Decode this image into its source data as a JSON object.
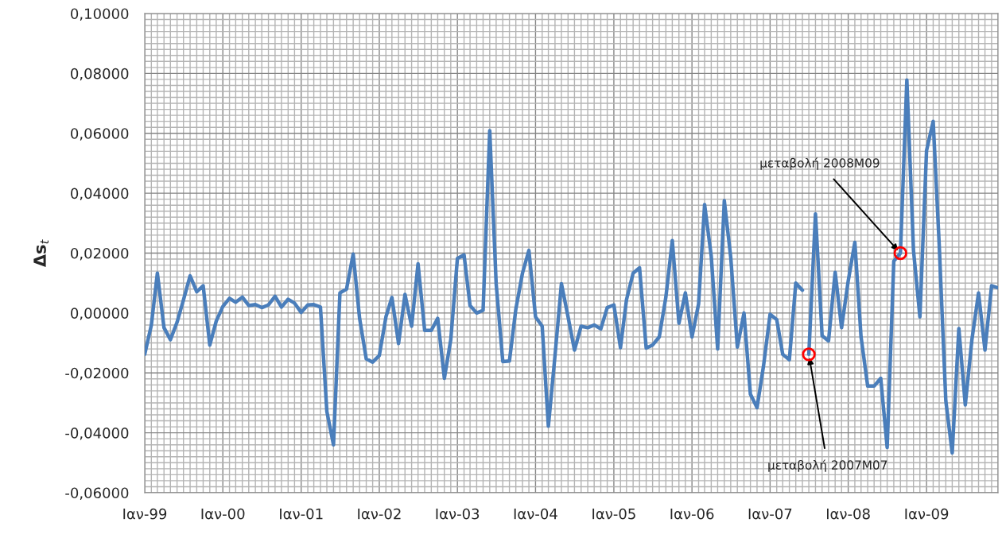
{
  "chart_data": {
    "type": "line",
    "ylabel": "Δs$_{t}$",
    "xlim": [
      "1999-01",
      "2009-12"
    ],
    "xticks": [
      {
        "value": "1999-01",
        "label": "Ιαν-99"
      },
      {
        "value": "2000-01",
        "label": "Ιαν-00"
      },
      {
        "value": "2001-01",
        "label": "Ιαν-01"
      },
      {
        "value": "2002-01",
        "label": "Ιαν-02"
      },
      {
        "value": "2003-01",
        "label": "Ιαν-03"
      },
      {
        "value": "2004-01",
        "label": "Ιαν-04"
      },
      {
        "value": "2005-01",
        "label": "Ιαν-05"
      },
      {
        "value": "2006-01",
        "label": "Ιαν-06"
      },
      {
        "value": "2007-01",
        "label": "Ιαν-07"
      },
      {
        "value": "2008-01",
        "label": "Ιαν-08"
      },
      {
        "value": "2009-01",
        "label": "Ιαν-09"
      }
    ],
    "ylim": [
      -0.06,
      0.1
    ],
    "yticks": [
      {
        "value": -0.06,
        "label": "-0,06000"
      },
      {
        "value": -0.04,
        "label": "-0,04000"
      },
      {
        "value": -0.02,
        "label": "-0,02000"
      },
      {
        "value": 0,
        "label": "0,00000"
      },
      {
        "value": 0.02,
        "label": "0,02000"
      },
      {
        "value": 0.04,
        "label": "0,04000"
      },
      {
        "value": 0.06,
        "label": "0,06000"
      },
      {
        "value": 0.08,
        "label": "0,08000"
      },
      {
        "value": 0.1,
        "label": "0,10000"
      }
    ],
    "grid": true,
    "legend": false,
    "line_style": "solid",
    "series": [
      {
        "color": "#4a7ebb",
        "marker": "none",
        "x": [
          "1999-01",
          "1999-02",
          "1999-03",
          "1999-04",
          "1999-05",
          "1999-06",
          "1999-07",
          "1999-08",
          "1999-09",
          "1999-10",
          "1999-11",
          "1999-12",
          "2000-01",
          "2000-02",
          "2000-03",
          "2000-04",
          "2000-05",
          "2000-06",
          "2000-07",
          "2000-08",
          "2000-09",
          "2000-10",
          "2000-11",
          "2000-12",
          "2001-01",
          "2001-02",
          "2001-03",
          "2001-04",
          "2001-05",
          "2001-06",
          "2001-07",
          "2001-08",
          "2001-09",
          "2001-10",
          "2001-11",
          "2001-12",
          "2002-01",
          "2002-02",
          "2002-03",
          "2002-04",
          "2002-05",
          "2002-06",
          "2002-07",
          "2002-08",
          "2002-09",
          "2002-10",
          "2002-11",
          "2002-12",
          "2003-01",
          "2003-02",
          "2003-03",
          "2003-04",
          "2003-05",
          "2003-06",
          "2003-07",
          "2003-08",
          "2003-09",
          "2003-10",
          "2003-11",
          "2003-12",
          "2004-01",
          "2004-02",
          "2004-03",
          "2004-04",
          "2004-05",
          "2004-06",
          "2004-07",
          "2004-08",
          "2004-09",
          "2004-10",
          "2004-11",
          "2004-12",
          "2005-01",
          "2005-02",
          "2005-03",
          "2005-04",
          "2005-05",
          "2005-06",
          "2005-07",
          "2005-08",
          "2005-09",
          "2005-10",
          "2005-11",
          "2005-12",
          "2006-01",
          "2006-02",
          "2006-03",
          "2006-04",
          "2006-05",
          "2006-06",
          "2006-07",
          "2006-08",
          "2006-09",
          "2006-10",
          "2006-11",
          "2006-12",
          "2007-01",
          "2007-02",
          "2007-03",
          "2007-04",
          "2007-05",
          "2007-06"
        ],
        "values": [
          -0.0138,
          -0.004,
          0.0133,
          -0.0049,
          -0.0089,
          -0.0031,
          0.0044,
          0.0124,
          0.0071,
          0.0091,
          -0.0107,
          -0.0027,
          0.0022,
          0.0049,
          0.0036,
          0.0053,
          0.0025,
          0.0028,
          0.0018,
          0.0027,
          0.0056,
          0.002,
          0.0046,
          0.0033,
          0.0002,
          0.0027,
          0.0028,
          0.002,
          -0.0329,
          -0.044,
          0.0067,
          0.008,
          0.0197,
          -0.0018,
          -0.0153,
          -0.0164,
          -0.0142,
          -0.0013,
          0.0052,
          -0.0102,
          0.0062,
          -0.0044,
          0.0164,
          -0.0058,
          -0.0058,
          -0.0018,
          -0.0218,
          -0.0089,
          0.0182,
          0.0194,
          0.0025,
          0,
          0.0009,
          0.0609,
          0.0098,
          -0.0162,
          -0.016,
          0.0013,
          0.0133,
          0.0209,
          -0.0013,
          -0.0044,
          -0.0378,
          -0.0142,
          0.0098,
          -0.0013,
          -0.0124,
          -0.0044,
          -0.0049,
          -0.004,
          -0.0053,
          0.0018,
          0.0027,
          -0.0116,
          0.0044,
          0.0133,
          0.0151,
          -0.0117,
          -0.0107,
          -0.008,
          0.0053,
          0.0242,
          -0.0034,
          0.0067,
          -0.008,
          0.0031,
          0.0362,
          0.019,
          -0.012,
          0.0375,
          0.0187,
          -0.0114,
          0,
          -0.0271,
          -0.0316,
          -0.0178,
          -0.0004,
          -0.0022,
          -0.0138,
          -0.0156,
          0.01,
          0.0076
        ]
      },
      {
        "color": "#4a7ebb",
        "marker": "none",
        "x": [
          "2007-07",
          "2007-08",
          "2007-09",
          "2007-10",
          "2007-11",
          "2007-12",
          "2008-01",
          "2008-02",
          "2008-03",
          "2008-04",
          "2008-05",
          "2008-06",
          "2008-07",
          "2008-08",
          "2008-09",
          "2008-10",
          "2008-11",
          "2008-12",
          "2009-01",
          "2009-02",
          "2009-03",
          "2009-04",
          "2009-05",
          "2009-06",
          "2009-07",
          "2009-08",
          "2009-09",
          "2009-10",
          "2009-11",
          "2009-12"
        ],
        "values": [
          -0.0138,
          0.0331,
          -0.0076,
          -0.0093,
          0.0136,
          -0.0049,
          0.0107,
          0.0236,
          -0.008,
          -0.0244,
          -0.0244,
          -0.0218,
          -0.0449,
          0.0173,
          0.02,
          0.0778,
          0.0209,
          -0.0013,
          0.0542,
          0.064,
          0.0231,
          -0.0293,
          -0.0467,
          -0.0052,
          -0.0307,
          -0.0089,
          0.0067,
          -0.0124,
          0.0091,
          0.0084
        ]
      },
      {
        "type": "scatter",
        "color": "#ff0000",
        "marker": "circle",
        "x": [
          "2007-07",
          "2008-09"
        ],
        "values": [
          -0.0138,
          0.02
        ]
      }
    ],
    "annotations": [
      {
        "text": "μεταβολή 2008M09",
        "x": "2008-09",
        "y": 0.02
      },
      {
        "text": "μεταβολή 2007M07",
        "x": "2007-07",
        "y": -0.0138
      }
    ]
  }
}
